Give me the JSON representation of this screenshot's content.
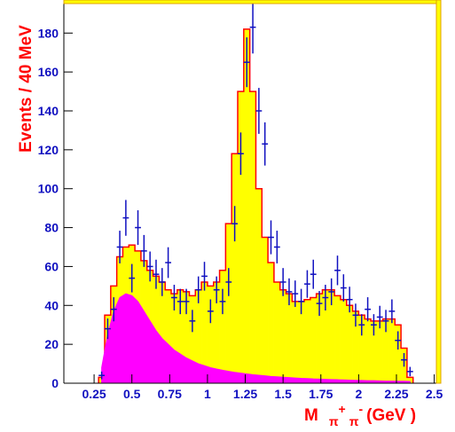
{
  "chart_data": {
    "type": "histogram",
    "bins": [
      0.28,
      0.32,
      0.36,
      0.4,
      0.44,
      0.48,
      0.52,
      0.56,
      0.6,
      0.64,
      0.68,
      0.72,
      0.76,
      0.8,
      0.84,
      0.88,
      0.92,
      0.96,
      1.0,
      1.04,
      1.08,
      1.12,
      1.16,
      1.2,
      1.24,
      1.28,
      1.32,
      1.36,
      1.4,
      1.44,
      1.48,
      1.52,
      1.56,
      1.6,
      1.64,
      1.68,
      1.72,
      1.76,
      1.8,
      1.84,
      1.88,
      1.92,
      1.96,
      2.0,
      2.04,
      2.08,
      2.12,
      2.16,
      2.2,
      2.24,
      2.28,
      2.32,
      2.36
    ],
    "counts": [
      3,
      35,
      50,
      65,
      70,
      71,
      68,
      63,
      58,
      55,
      52,
      48,
      46,
      48,
      47,
      45,
      48,
      52,
      50,
      52,
      58,
      82,
      118,
      150,
      182,
      150,
      100,
      75,
      62,
      52,
      48,
      46,
      42,
      42,
      43,
      44,
      46,
      48,
      48,
      45,
      43,
      40,
      37,
      35,
      33,
      32,
      32,
      33,
      33,
      30,
      18,
      3
    ],
    "color": "#ffff00",
    "edge_color": "#ff0000",
    "x": [
      0.3,
      0.34,
      0.38,
      0.42,
      0.46,
      0.5,
      0.54,
      0.58,
      0.62,
      0.66,
      0.7,
      0.74,
      0.78,
      0.82,
      0.86,
      0.9,
      0.94,
      0.98,
      1.02,
      1.06,
      1.1,
      1.14,
      1.18,
      1.22,
      1.26,
      1.3,
      1.34,
      1.38,
      1.42,
      1.46,
      1.5,
      1.54,
      1.58,
      1.62,
      1.66,
      1.7,
      1.74,
      1.78,
      1.82,
      1.86,
      1.9,
      1.94,
      1.98,
      2.02,
      2.06,
      2.1,
      2.14,
      2.18,
      2.22,
      2.26,
      2.3,
      2.34
    ],
    "background": {
      "color": "#ff00ff",
      "values": [
        8,
        25,
        37,
        44,
        46,
        45,
        42,
        37,
        32,
        27,
        23,
        20,
        17,
        15,
        13,
        11.5,
        10,
        9,
        8,
        7.3,
        6.7,
        6.1,
        5.6,
        5.2,
        4.8,
        4.4,
        4.1,
        3.8,
        3.5,
        3.3,
        3.1,
        2.9,
        2.7,
        2.5,
        2.4,
        2.2,
        2.1,
        2.0,
        1.9,
        1.8,
        1.7,
        1.6,
        1.5,
        1.4,
        1.3,
        1.3,
        1.2,
        1.1,
        1.1,
        1.0,
        1.0,
        0.9
      ]
    },
    "points": {
      "color": "#1010c0",
      "values": [
        4,
        28,
        38,
        70,
        85,
        54,
        80,
        68,
        60,
        56,
        52,
        62,
        44,
        42,
        42,
        32,
        48,
        55,
        37,
        48,
        42,
        52,
        82,
        118,
        165,
        183,
        140,
        123,
        75,
        70,
        52,
        47,
        46,
        42,
        51,
        56,
        41,
        44,
        47,
        58,
        49,
        43,
        35,
        30,
        38,
        30,
        34,
        32,
        37,
        22,
        12,
        6
      ],
      "errors": [
        2,
        5.3,
        6.2,
        8.4,
        9.2,
        7.3,
        8.9,
        8.2,
        7.7,
        7.5,
        7.2,
        7.9,
        6.6,
        6.5,
        6.5,
        5.7,
        6.9,
        7.4,
        6.1,
        6.9,
        6.5,
        7.2,
        9.1,
        10.9,
        12.8,
        13.5,
        11.8,
        11.1,
        8.7,
        8.4,
        7.2,
        6.9,
        6.8,
        6.5,
        7.1,
        7.5,
        6.4,
        6.6,
        6.9,
        7.6,
        7,
        6.6,
        5.9,
        5.5,
        6.2,
        5.5,
        5.8,
        5.7,
        6.1,
        4.7,
        3.5,
        2.4
      ]
    },
    "xlim": [
      0.05,
      2.52
    ],
    "ylim": [
      0,
      197
    ],
    "xticks": [
      0.25,
      0.5,
      0.75,
      1,
      1.25,
      1.5,
      1.75,
      2,
      2.25,
      2.5
    ],
    "yticks": [
      0,
      20,
      40,
      60,
      80,
      100,
      120,
      140,
      160,
      180
    ],
    "y_label": "Events / 40 MeV",
    "x_label": {
      "main": "M",
      "sub1": "π",
      "sup1": "+",
      "sub2": "π",
      "sup2": "-",
      "unit": "(GeV )"
    }
  }
}
